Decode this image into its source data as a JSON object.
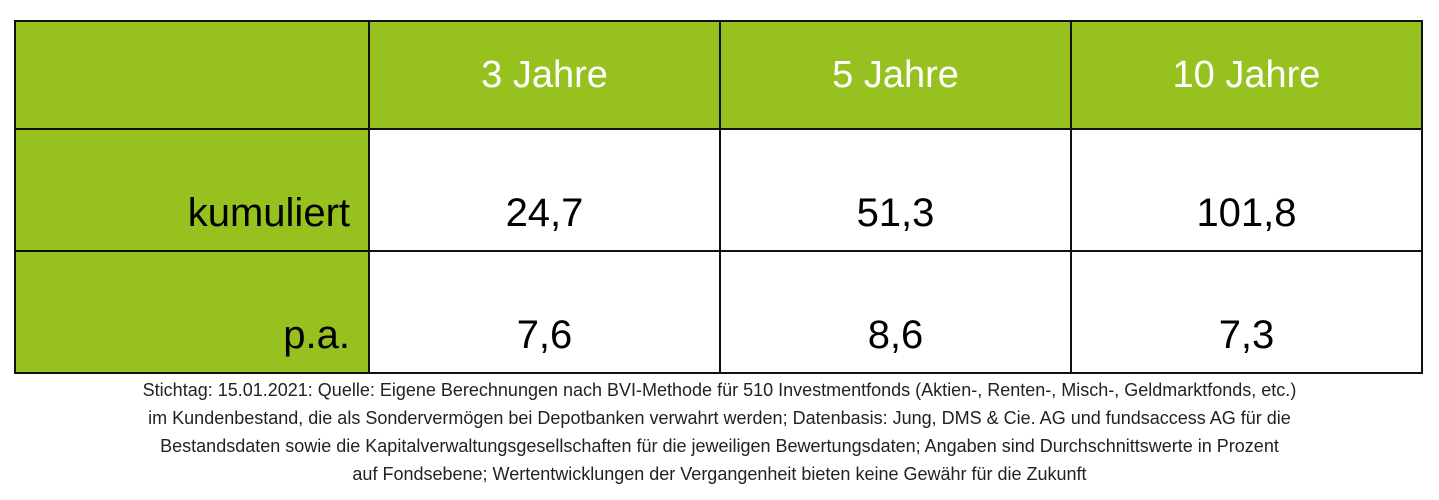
{
  "table": {
    "header_corner": "",
    "columns": [
      "3 Jahre",
      "5 Jahre",
      "10 Jahre"
    ],
    "rows": [
      {
        "label": "kumuliert",
        "values": [
          "24,7",
          "51,3",
          "101,8"
        ]
      },
      {
        "label": "p.a.",
        "values": [
          "7,6",
          "8,6",
          "7,3"
        ]
      }
    ]
  },
  "footnote": {
    "lines": [
      "Stichtag: 15.01.2021: Quelle: Eigene Berechnungen nach BVI-Methode für 510 Investmentfonds (Aktien-, Renten-, Misch-, Geldmarktfonds, etc.)",
      "im Kundenbestand, die als Sondervermögen bei Depotbanken verwahrt werden; Datenbasis: Jung, DMS & Cie. AG und fundsaccess AG für die",
      "Bestandsdaten sowie die Kapitalverwaltungsgesellschaften für die jeweiligen Bewertungsdaten; Angaben sind Durchschnittswerte in Prozent",
      "auf Fondsebene; Wertentwicklungen der Vergangenheit bieten keine Gewähr für die Zukunft"
    ]
  },
  "colors": {
    "accent_green": "#97c11f",
    "header_text": "#ffffff",
    "border": "#111111"
  }
}
